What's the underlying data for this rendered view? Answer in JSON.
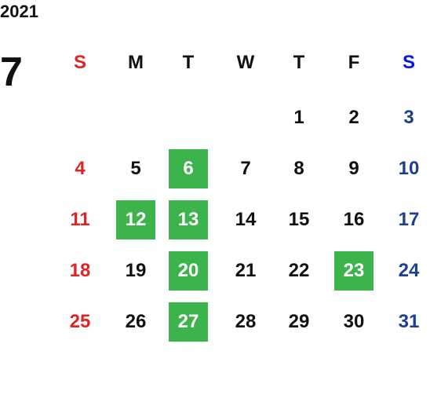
{
  "header": {
    "year": "2021",
    "month": "7"
  },
  "weekdays": [
    "S",
    "M",
    "T",
    "W",
    "T",
    "F",
    "S"
  ],
  "weeks": [
    [
      null,
      null,
      null,
      null,
      {
        "day": 1,
        "highlight": false
      },
      {
        "day": 2,
        "highlight": false
      },
      {
        "day": 3,
        "highlight": false
      }
    ],
    [
      {
        "day": 4,
        "highlight": false
      },
      {
        "day": 5,
        "highlight": false
      },
      {
        "day": 6,
        "highlight": true
      },
      {
        "day": 7,
        "highlight": false
      },
      {
        "day": 8,
        "highlight": false
      },
      {
        "day": 9,
        "highlight": false
      },
      {
        "day": 10,
        "highlight": false
      }
    ],
    [
      {
        "day": 11,
        "highlight": false
      },
      {
        "day": 12,
        "highlight": true
      },
      {
        "day": 13,
        "highlight": true
      },
      {
        "day": 14,
        "highlight": false
      },
      {
        "day": 15,
        "highlight": false
      },
      {
        "day": 16,
        "highlight": false
      },
      {
        "day": 17,
        "highlight": false
      }
    ],
    [
      {
        "day": 18,
        "highlight": false
      },
      {
        "day": 19,
        "highlight": false
      },
      {
        "day": 20,
        "highlight": true
      },
      {
        "day": 21,
        "highlight": false
      },
      {
        "day": 22,
        "highlight": false
      },
      {
        "day": 23,
        "highlight": true
      },
      {
        "day": 24,
        "highlight": false
      }
    ],
    [
      {
        "day": 25,
        "highlight": false
      },
      {
        "day": 26,
        "highlight": false
      },
      {
        "day": 27,
        "highlight": true
      },
      {
        "day": 28,
        "highlight": false
      },
      {
        "day": 29,
        "highlight": false
      },
      {
        "day": 30,
        "highlight": false
      },
      {
        "day": 31,
        "highlight": false
      }
    ]
  ]
}
